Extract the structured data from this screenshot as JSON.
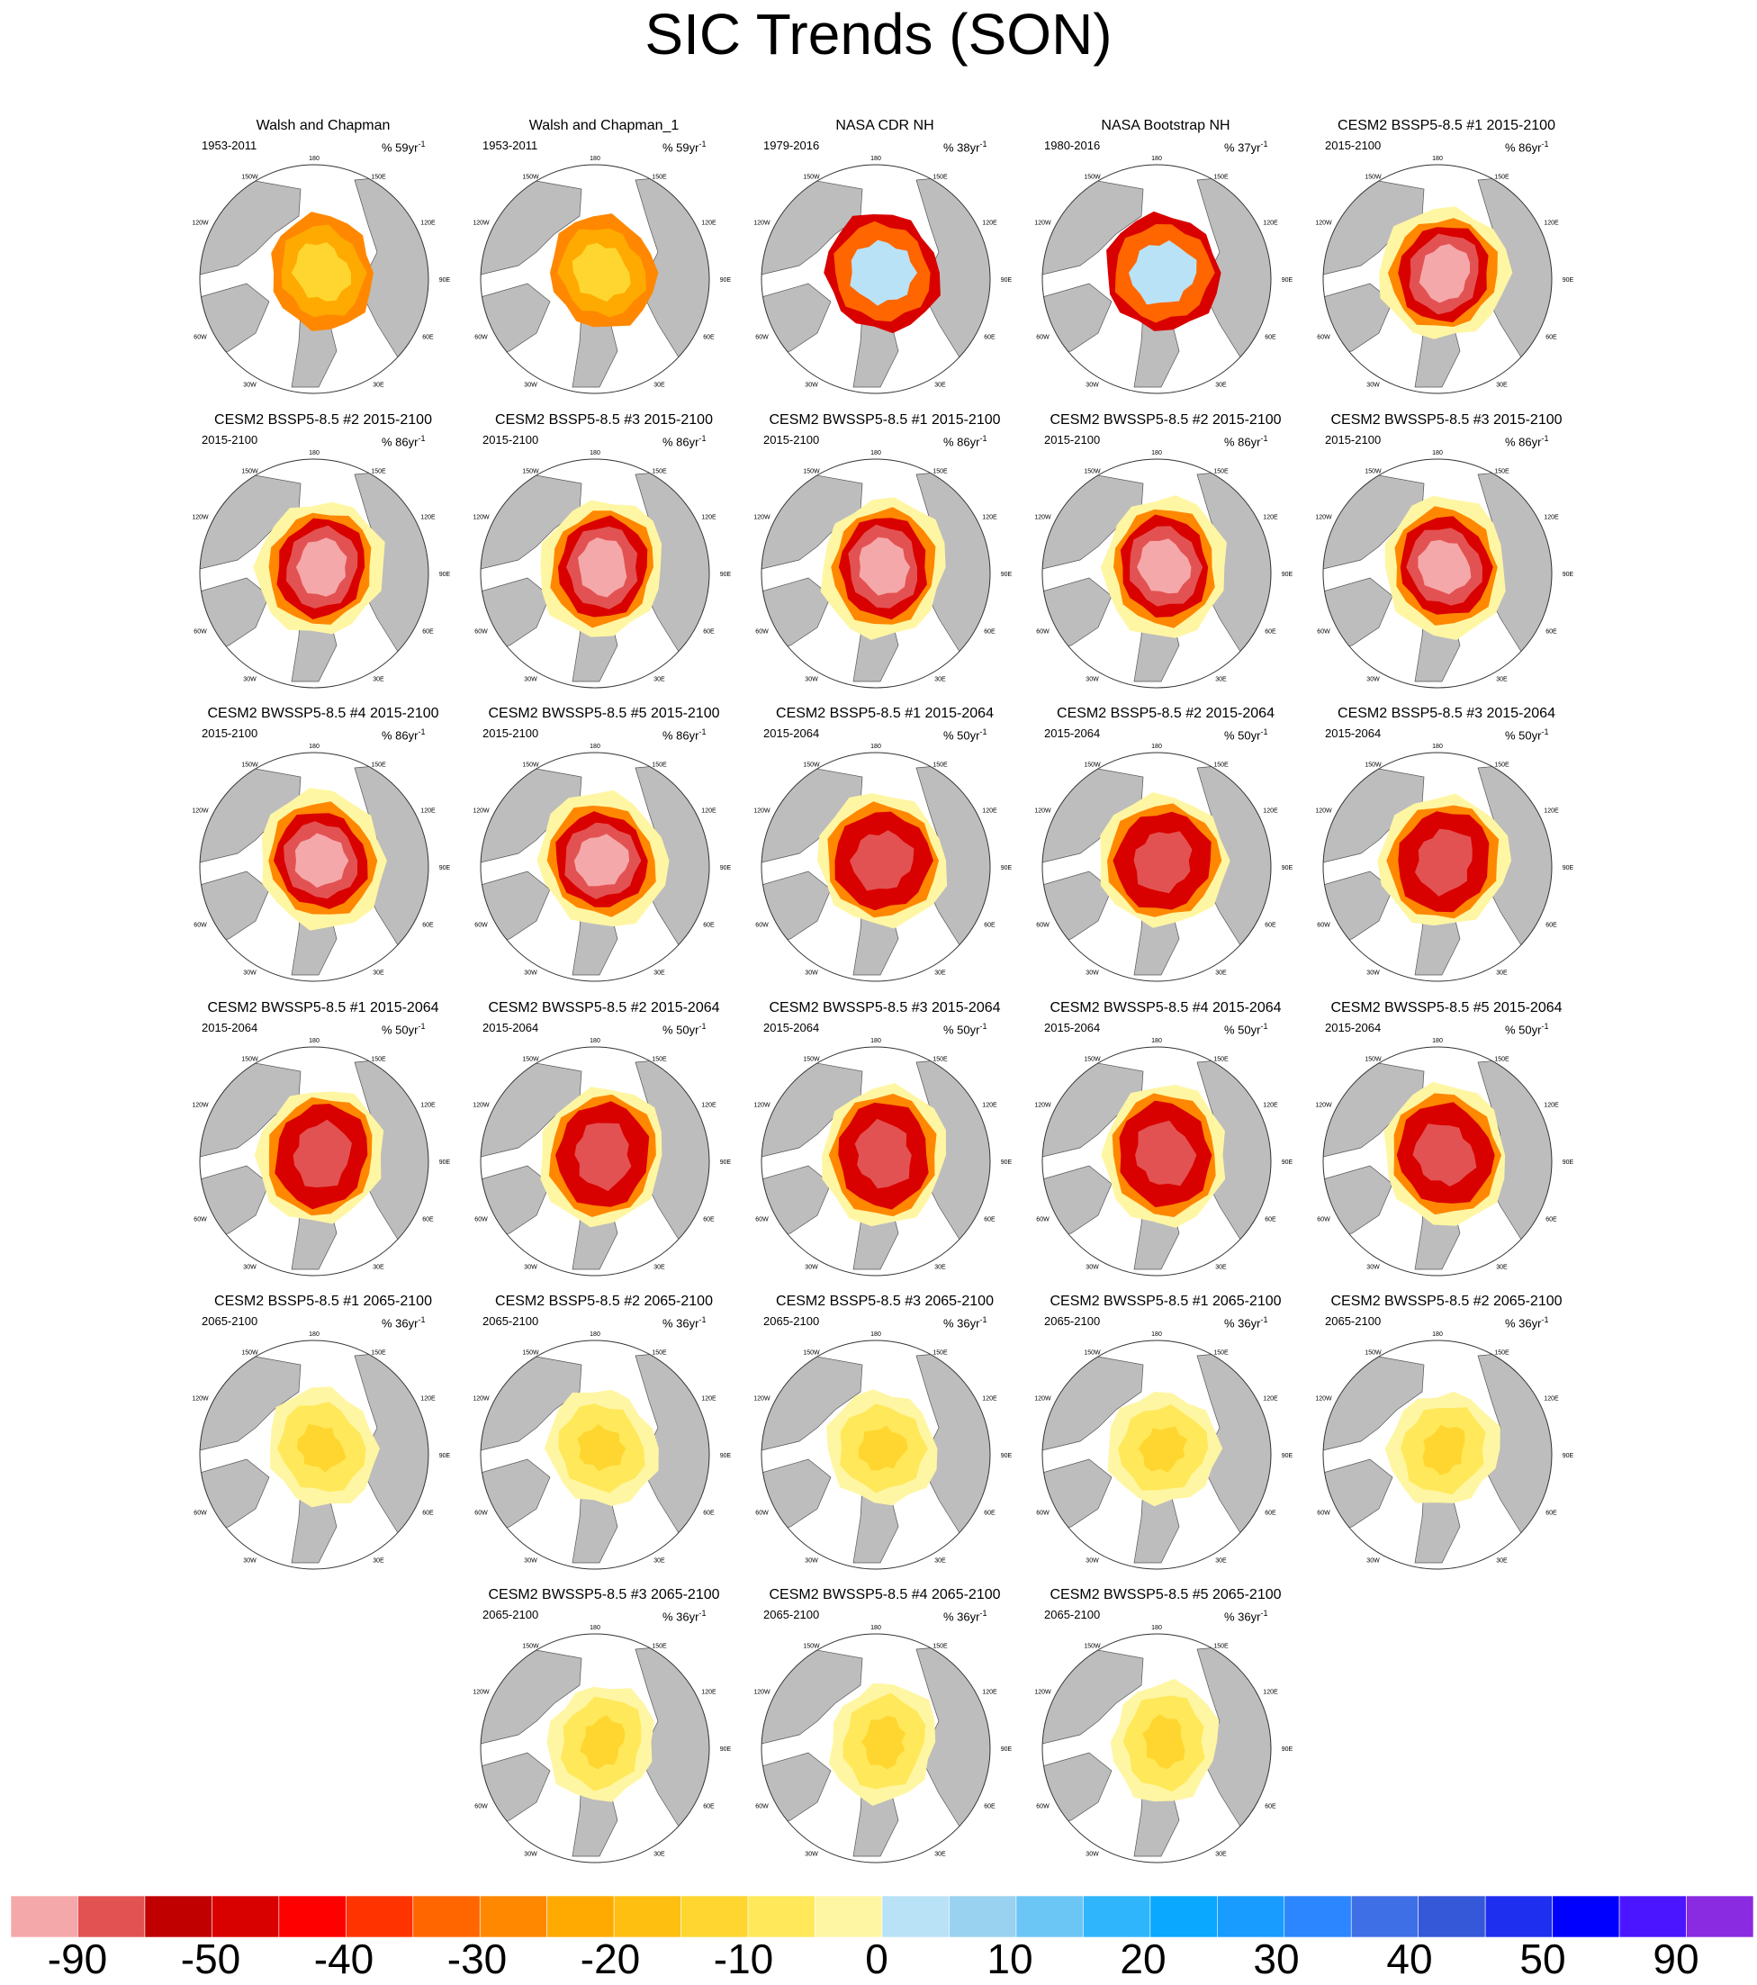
{
  "title": "SIC Trends (SON)",
  "chart_data": {
    "type": "heatmap",
    "title": "SIC Trends (SON)",
    "projection": "north polar stereographic",
    "colorbar": {
      "labels": [
        "-90",
        "-50",
        "-40",
        "-30",
        "-20",
        "-10",
        "0",
        "10",
        "20",
        "30",
        "40",
        "50",
        "90"
      ],
      "colors": [
        "#f5a8aa",
        "#e35252",
        "#c00000",
        "#d90000",
        "#ff0000",
        "#ff3300",
        "#ff6600",
        "#ff8800",
        "#ffaa00",
        "#ffbf11",
        "#ffd630",
        "#ffe85a",
        "#fff6a4",
        "#b9e2f6",
        "#99d1f0",
        "#6bc5f5",
        "#2fb5fb",
        "#0aa8ff",
        "#199cff",
        "#2b86ff",
        "#3e6fe6",
        "#3458d8",
        "#1f2ff0",
        "#0000ff",
        "#4b16ff",
        "#8a2be2"
      ]
    },
    "lon_labels": [
      "180",
      "150E",
      "120E",
      "90E",
      "60E",
      "30E",
      "0",
      "30W",
      "60W",
      "90W",
      "120W",
      "150W"
    ],
    "panels": [
      {
        "title": "Walsh and Chapman",
        "period": "1953-2011",
        "unit_value": "59",
        "style": "obs"
      },
      {
        "title": "Walsh and Chapman_1",
        "period": "1953-2011",
        "unit_value": "59",
        "style": "obs"
      },
      {
        "title": "NASA CDR NH",
        "period": "1979-2016",
        "unit_value": "38",
        "style": "sat"
      },
      {
        "title": "NASA Bootstrap NH",
        "period": "1980-2016",
        "unit_value": "37",
        "style": "sat"
      },
      {
        "title": "CESM2 BSSP5-8.5 #1 2015-2100",
        "period": "2015-2100",
        "unit_value": "86",
        "style": "full"
      },
      {
        "title": "CESM2 BSSP5-8.5 #2 2015-2100",
        "period": "2015-2100",
        "unit_value": "86",
        "style": "full"
      },
      {
        "title": "CESM2 BSSP5-8.5 #3 2015-2100",
        "period": "2015-2100",
        "unit_value": "86",
        "style": "full"
      },
      {
        "title": "CESM2 BWSSP5-8.5 #1 2015-2100",
        "period": "2015-2100",
        "unit_value": "86",
        "style": "full"
      },
      {
        "title": "CESM2 BWSSP5-8.5 #2 2015-2100",
        "period": "2015-2100",
        "unit_value": "86",
        "style": "full"
      },
      {
        "title": "CESM2 BWSSP5-8.5 #3 2015-2100",
        "period": "2015-2100",
        "unit_value": "86",
        "style": "full"
      },
      {
        "title": "CESM2 BWSSP5-8.5 #4 2015-2100",
        "period": "2015-2100",
        "unit_value": "86",
        "style": "full"
      },
      {
        "title": "CESM2 BWSSP5-8.5 #5 2015-2100",
        "period": "2015-2100",
        "unit_value": "86",
        "style": "full"
      },
      {
        "title": "CESM2 BSSP5-8.5 #1 2015-2064",
        "period": "2015-2064",
        "unit_value": "50",
        "style": "early"
      },
      {
        "title": "CESM2 BSSP5-8.5 #2 2015-2064",
        "period": "2015-2064",
        "unit_value": "50",
        "style": "early"
      },
      {
        "title": "CESM2 BSSP5-8.5 #3 2015-2064",
        "period": "2015-2064",
        "unit_value": "50",
        "style": "early"
      },
      {
        "title": "CESM2 BWSSP5-8.5 #1 2015-2064",
        "period": "2015-2064",
        "unit_value": "50",
        "style": "early"
      },
      {
        "title": "CESM2 BWSSP5-8.5 #2 2015-2064",
        "period": "2015-2064",
        "unit_value": "50",
        "style": "early"
      },
      {
        "title": "CESM2 BWSSP5-8.5 #3 2015-2064",
        "period": "2015-2064",
        "unit_value": "50",
        "style": "early"
      },
      {
        "title": "CESM2 BWSSP5-8.5 #4 2015-2064",
        "period": "2015-2064",
        "unit_value": "50",
        "style": "early"
      },
      {
        "title": "CESM2 BWSSP5-8.5 #5 2015-2064",
        "period": "2015-2064",
        "unit_value": "50",
        "style": "early"
      },
      {
        "title": "CESM2 BSSP5-8.5 #1 2065-2100",
        "period": "2065-2100",
        "unit_value": "36",
        "style": "late"
      },
      {
        "title": "CESM2 BSSP5-8.5 #2 2065-2100",
        "period": "2065-2100",
        "unit_value": "36",
        "style": "late"
      },
      {
        "title": "CESM2 BSSP5-8.5 #3 2065-2100",
        "period": "2065-2100",
        "unit_value": "36",
        "style": "late"
      },
      {
        "title": "CESM2 BWSSP5-8.5 #1 2065-2100",
        "period": "2065-2100",
        "unit_value": "36",
        "style": "late"
      },
      {
        "title": "CESM2 BWSSP5-8.5 #2 2065-2100",
        "period": "2065-2100",
        "unit_value": "36",
        "style": "late"
      },
      {
        "title": "CESM2 BWSSP5-8.5 #3 2065-2100",
        "period": "2065-2100",
        "unit_value": "36",
        "style": "late"
      },
      {
        "title": "CESM2 BWSSP5-8.5 #4 2065-2100",
        "period": "2065-2100",
        "unit_value": "36",
        "style": "late"
      },
      {
        "title": "CESM2 BWSSP5-8.5 #5 2065-2100",
        "period": "2065-2100",
        "unit_value": "36",
        "style": "late"
      }
    ]
  }
}
